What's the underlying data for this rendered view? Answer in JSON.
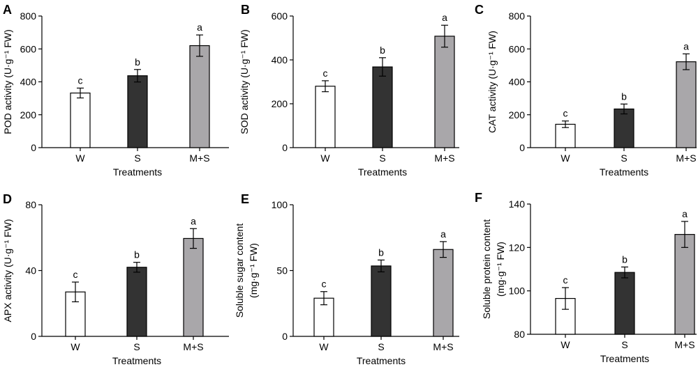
{
  "chart_data": [
    {
      "panel": "A",
      "type": "bar",
      "categories": [
        "W",
        "S",
        "M+S"
      ],
      "values": [
        332,
        437,
        620
      ],
      "errors": [
        30,
        38,
        65
      ],
      "significance": [
        "c",
        "b",
        "a"
      ],
      "colors": [
        "#ffffff",
        "#333333",
        "#a9a7aa"
      ],
      "ylabel_lines": [
        "POD activity (U·g⁻¹ FW)"
      ],
      "xlabel": "Treatments",
      "ylim": [
        0,
        800
      ],
      "yticks": [
        0,
        200,
        400,
        600,
        800
      ]
    },
    {
      "panel": "B",
      "type": "bar",
      "categories": [
        "W",
        "S",
        "M+S"
      ],
      "values": [
        280,
        368,
        508
      ],
      "errors": [
        25,
        42,
        50
      ],
      "significance": [
        "c",
        "b",
        "a"
      ],
      "colors": [
        "#ffffff",
        "#333333",
        "#a9a7aa"
      ],
      "ylabel_lines": [
        "SOD activity (U·g⁻¹ FW)"
      ],
      "xlabel": "Treatments",
      "ylim": [
        0,
        600
      ],
      "yticks": [
        0,
        200,
        400,
        600
      ]
    },
    {
      "panel": "C",
      "type": "bar",
      "categories": [
        "W",
        "S",
        "M+S"
      ],
      "values": [
        142,
        235,
        522
      ],
      "errors": [
        20,
        30,
        48
      ],
      "significance": [
        "c",
        "b",
        "a"
      ],
      "colors": [
        "#ffffff",
        "#333333",
        "#a9a7aa"
      ],
      "ylabel_lines": [
        "CAT activity (U·g⁻¹ FW)"
      ],
      "xlabel": "Treatments",
      "ylim": [
        0,
        800
      ],
      "yticks": [
        0,
        200,
        400,
        600,
        800
      ]
    },
    {
      "panel": "D",
      "type": "bar",
      "categories": [
        "W",
        "S",
        "M+S"
      ],
      "values": [
        27,
        42,
        59.5
      ],
      "errors": [
        6,
        3,
        6
      ],
      "significance": [
        "c",
        "b",
        "a"
      ],
      "colors": [
        "#ffffff",
        "#333333",
        "#a9a7aa"
      ],
      "ylabel_lines": [
        "APX activity (U·g⁻¹ FW)"
      ],
      "xlabel": "Treatments",
      "ylim": [
        0,
        80
      ],
      "yticks": [
        0,
        40,
        80
      ]
    },
    {
      "panel": "E",
      "type": "bar",
      "categories": [
        "W",
        "S",
        "M+S"
      ],
      "values": [
        29,
        53.5,
        66
      ],
      "errors": [
        5,
        4.5,
        6
      ],
      "significance": [
        "c",
        "b",
        "a"
      ],
      "colors": [
        "#ffffff",
        "#333333",
        "#a9a7aa"
      ],
      "ylabel_lines": [
        "Soluble sugar content",
        "(mg·g⁻¹ FW)"
      ],
      "xlabel": "Treatments",
      "ylim": [
        0,
        100
      ],
      "yticks": [
        0,
        50,
        100
      ]
    },
    {
      "panel": "F",
      "type": "bar",
      "categories": [
        "W",
        "S",
        "M+S"
      ],
      "values": [
        96.5,
        108.5,
        126
      ],
      "errors": [
        5,
        2.5,
        6
      ],
      "significance": [
        "c",
        "b",
        "a"
      ],
      "colors": [
        "#ffffff",
        "#333333",
        "#a9a7aa"
      ],
      "ylabel_lines": [
        "Soluble protein content",
        "(mg·g⁻¹ FW)"
      ],
      "xlabel": "Treatments",
      "ylim": [
        80,
        140
      ],
      "yticks": [
        80,
        100,
        120,
        140
      ]
    }
  ]
}
